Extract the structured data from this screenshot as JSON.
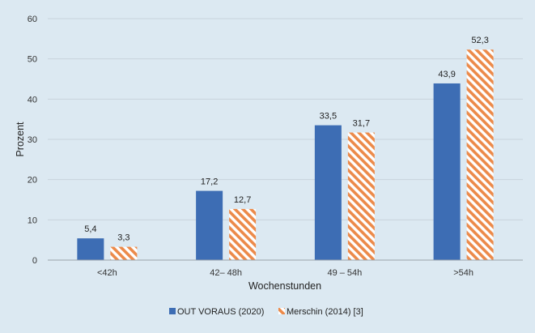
{
  "colors": {
    "background": "#dce9f2",
    "series1": "#3d6db4",
    "series2_stripe": "#ec8a4a",
    "series2_base": "#ffffff",
    "grid": "#c8d3dc",
    "axis": "#9aa3ab"
  },
  "chart_data": {
    "type": "bar",
    "title": "",
    "xlabel": "Wochenstunden",
    "ylabel": "Prozent",
    "ylim": [
      0,
      60
    ],
    "yticks": [
      "0",
      "10",
      "20",
      "30",
      "40",
      "50",
      "60"
    ],
    "grid": true,
    "legend_position": "bottom-center",
    "categories": [
      "<42h",
      "42– 48h",
      "49 – 54h",
      ">54h"
    ],
    "series": [
      {
        "name": "OUT VORAUS (2020)",
        "values": [
          5.4,
          17.2,
          33.5,
          43.9
        ],
        "labels": [
          "5,4",
          "17,2",
          "33,5",
          "43,9"
        ],
        "pattern": "solid"
      },
      {
        "name": "Merschin (2014) [3]",
        "values": [
          3.3,
          12.7,
          31.7,
          52.3
        ],
        "labels": [
          "3,3",
          "12,7",
          "31,7",
          "52,3"
        ],
        "pattern": "diagonal-stripes"
      }
    ]
  }
}
